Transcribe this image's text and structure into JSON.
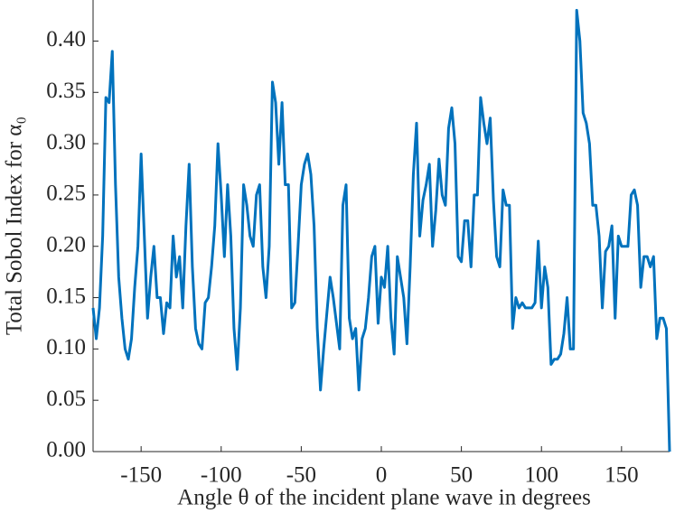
{
  "chart_data": {
    "type": "line",
    "xlabel": "Angle θ of the incident plane wave in degrees",
    "ylabel": "Total Sobol Index for α₀",
    "color": "#0072bd",
    "x": [
      -180,
      -178,
      -176,
      -174,
      -172,
      -170,
      -168,
      -166,
      -164,
      -162,
      -160,
      -158,
      -156,
      -154,
      -152,
      -150,
      -148,
      -146,
      -144,
      -142,
      -140,
      -138,
      -136,
      -134,
      -132,
      -130,
      -128,
      -126,
      -124,
      -122,
      -120,
      -118,
      -116,
      -114,
      -112,
      -110,
      -108,
      -106,
      -104,
      -102,
      -100,
      -98,
      -96,
      -94,
      -92,
      -90,
      -88,
      -86,
      -84,
      -82,
      -80,
      -78,
      -76,
      -74,
      -72,
      -70,
      -68,
      -66,
      -64,
      -62,
      -60,
      -58,
      -56,
      -54,
      -52,
      -50,
      -48,
      -46,
      -44,
      -42,
      -40,
      -38,
      -36,
      -34,
      -32,
      -30,
      -28,
      -26,
      -24,
      -22,
      -20,
      -18,
      -16,
      -14,
      -12,
      -10,
      -8,
      -6,
      -4,
      -2,
      0,
      2,
      4,
      6,
      8,
      10,
      12,
      14,
      16,
      18,
      20,
      22,
      24,
      26,
      28,
      30,
      32,
      34,
      36,
      38,
      40,
      42,
      44,
      46,
      48,
      50,
      52,
      54,
      56,
      58,
      60,
      62,
      64,
      66,
      68,
      70,
      72,
      74,
      76,
      78,
      80,
      82,
      84,
      86,
      88,
      90,
      92,
      94,
      96,
      98,
      100,
      102,
      104,
      106,
      108,
      110,
      112,
      114,
      116,
      118,
      120,
      122,
      124,
      126,
      128,
      130,
      132,
      134,
      136,
      138,
      140,
      142,
      144,
      146,
      148,
      150,
      152,
      154,
      156,
      158,
      160,
      162,
      164,
      166,
      168,
      170,
      172,
      174,
      176,
      178,
      180
    ],
    "values": [
      0.14,
      0.11,
      0.14,
      0.21,
      0.345,
      0.34,
      0.39,
      0.26,
      0.17,
      0.13,
      0.1,
      0.09,
      0.11,
      0.16,
      0.2,
      0.29,
      0.21,
      0.13,
      0.17,
      0.2,
      0.15,
      0.15,
      0.115,
      0.145,
      0.14,
      0.21,
      0.17,
      0.19,
      0.14,
      0.22,
      0.28,
      0.18,
      0.12,
      0.105,
      0.1,
      0.145,
      0.15,
      0.18,
      0.22,
      0.3,
      0.25,
      0.19,
      0.26,
      0.21,
      0.12,
      0.08,
      0.14,
      0.26,
      0.24,
      0.21,
      0.2,
      0.25,
      0.26,
      0.18,
      0.15,
      0.2,
      0.36,
      0.34,
      0.28,
      0.34,
      0.26,
      0.26,
      0.14,
      0.145,
      0.2,
      0.26,
      0.28,
      0.29,
      0.27,
      0.22,
      0.12,
      0.06,
      0.1,
      0.135,
      0.17,
      0.15,
      0.125,
      0.1,
      0.24,
      0.26,
      0.13,
      0.11,
      0.12,
      0.06,
      0.11,
      0.12,
      0.15,
      0.19,
      0.2,
      0.125,
      0.17,
      0.16,
      0.2,
      0.13,
      0.095,
      0.19,
      0.17,
      0.15,
      0.105,
      0.18,
      0.27,
      0.32,
      0.21,
      0.245,
      0.26,
      0.28,
      0.2,
      0.235,
      0.285,
      0.25,
      0.24,
      0.315,
      0.335,
      0.3,
      0.19,
      0.185,
      0.225,
      0.225,
      0.18,
      0.25,
      0.25,
      0.345,
      0.32,
      0.3,
      0.325,
      0.245,
      0.19,
      0.18,
      0.255,
      0.24,
      0.24,
      0.12,
      0.15,
      0.14,
      0.145,
      0.14,
      0.14,
      0.14,
      0.145,
      0.205,
      0.14,
      0.18,
      0.16,
      0.085,
      0.09,
      0.09,
      0.095,
      0.115,
      0.15,
      0.1,
      0.1,
      0.43,
      0.4,
      0.33,
      0.32,
      0.3,
      0.24,
      0.24,
      0.21,
      0.14,
      0.195,
      0.2,
      0.22,
      0.13,
      0.21,
      0.2,
      0.2,
      0.2,
      0.25,
      0.255,
      0.24,
      0.16,
      0.19,
      0.19,
      0.18,
      0.19,
      0.11,
      0.13,
      0.13,
      0.12,
      0.0
    ],
    "xlim": [
      -180,
      180
    ],
    "ylim": [
      0,
      0.44
    ],
    "xticks": [
      -150,
      -100,
      -50,
      0,
      50,
      100,
      150
    ],
    "yticks": [
      {
        "value": 0,
        "label": "0.00"
      },
      {
        "value": 0.05,
        "label": "0.05"
      },
      {
        "value": 0.1,
        "label": "0.10"
      },
      {
        "value": 0.15,
        "label": "0.15"
      },
      {
        "value": 0.2,
        "label": "0.20"
      },
      {
        "value": 0.25,
        "label": "0.25"
      },
      {
        "value": 0.3,
        "label": "0.30"
      },
      {
        "value": 0.35,
        "label": "0.35"
      },
      {
        "value": 0.4,
        "label": "0.40"
      }
    ]
  }
}
